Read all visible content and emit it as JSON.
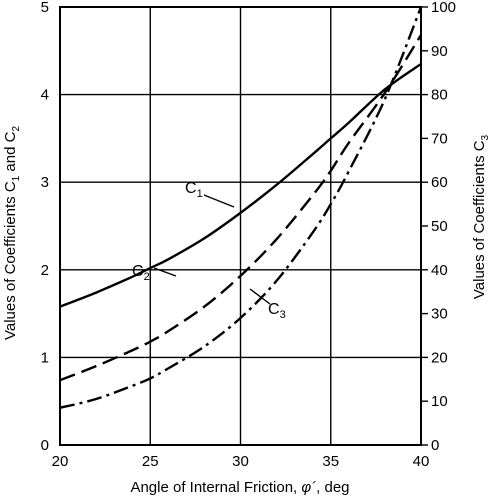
{
  "chart_data": {
    "type": "line",
    "xlabel_text": "Angle of Internal Friction, ",
    "xlabel_symbol": "φ´",
    "xlabel_unit": ", deg",
    "ylabel_left_main": "Values of Coefficients C",
    "ylabel_left_sub1": "1",
    "ylabel_left_mid": " and C",
    "ylabel_left_sub2": "2",
    "ylabel_right_main": "Values of Coefficients C",
    "ylabel_right_sub": "3",
    "xlim": [
      20,
      40
    ],
    "ylim_left": [
      0,
      5
    ],
    "ylim_right": [
      0,
      100
    ],
    "x_ticks": [
      "20",
      "25",
      "30",
      "35",
      "40"
    ],
    "y_left_ticks": [
      "0",
      "1",
      "2",
      "3",
      "4",
      "5"
    ],
    "y_right_ticks": [
      "0",
      "10",
      "20",
      "30",
      "40",
      "50",
      "60",
      "70",
      "80",
      "90",
      "100"
    ],
    "grid": true,
    "series": [
      {
        "name": "C",
        "sub": "2",
        "axis": "left",
        "style": "solid",
        "x": [
          20,
          22,
          24,
          25,
          26,
          28,
          30,
          32,
          34,
          35,
          36,
          38,
          40
        ],
        "y": [
          1.58,
          1.74,
          1.92,
          2.02,
          2.12,
          2.36,
          2.65,
          2.97,
          3.32,
          3.5,
          3.68,
          4.06,
          4.35
        ]
      },
      {
        "name": "C",
        "sub": "1",
        "axis": "left",
        "style": "dashed",
        "x": [
          20,
          22,
          24,
          25,
          26,
          28,
          30,
          32,
          34,
          35,
          36,
          38,
          40
        ],
        "y": [
          0.74,
          0.9,
          1.08,
          1.18,
          1.3,
          1.58,
          1.93,
          2.35,
          2.85,
          3.13,
          3.45,
          4.02,
          4.68
        ]
      },
      {
        "name": "C",
        "sub": "3",
        "axis": "right",
        "style": "dashdot",
        "x": [
          20,
          22,
          24,
          25,
          26,
          28,
          30,
          32,
          34,
          35,
          36,
          38,
          40
        ],
        "y": [
          8.5,
          10.5,
          13.5,
          15.2,
          17.5,
          22.5,
          29,
          37.5,
          48.5,
          55,
          62.5,
          79,
          100
        ]
      }
    ]
  }
}
